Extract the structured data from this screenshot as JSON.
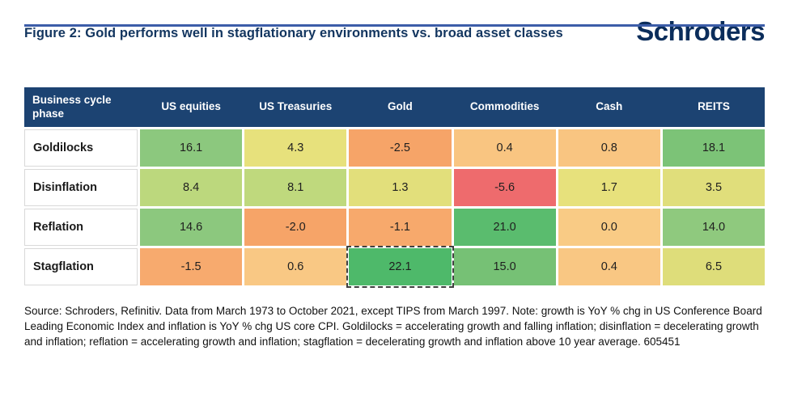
{
  "header": {
    "title": "Figure 2: Gold performs well in stagflationary environments vs. broad asset classes",
    "logo": "Schroders"
  },
  "colors": {
    "brand_navy": "#0b2d5b",
    "header_bar": "#1c4372",
    "top_rule_blue": "#3c5da8",
    "highlight_dash": "#404040"
  },
  "table": {
    "corner_header": "Business cycle phase",
    "column_keys": [
      "us-equities",
      "us-treasuries",
      "gold",
      "commodities",
      "cash",
      "reits"
    ]
  },
  "chart_data": {
    "type": "heatmap",
    "title": "Figure 2: Gold performs well in stagflationary environments vs. broad asset classes",
    "rows": [
      "Goldilocks",
      "Disinflation",
      "Reflation",
      "Stagflation"
    ],
    "columns": [
      "US equities",
      "US Treasuries",
      "Gold",
      "Commodities",
      "Cash",
      "REITS"
    ],
    "values": [
      [
        16.1,
        4.3,
        -2.5,
        0.4,
        0.8,
        18.1
      ],
      [
        8.4,
        8.1,
        1.3,
        -5.6,
        1.7,
        3.5
      ],
      [
        14.6,
        -2.0,
        -1.1,
        21.0,
        0.0,
        14.0
      ],
      [
        -1.5,
        0.6,
        22.1,
        15.0,
        0.4,
        6.5
      ]
    ],
    "cell_colors": [
      [
        "#8cc87e",
        "#e7e17c",
        "#f6a468",
        "#f9c581",
        "#f9c581",
        "#7cc377"
      ],
      [
        "#bcd87d",
        "#bfd97d",
        "#e2df7b",
        "#ee6b6d",
        "#e7e17c",
        "#e0de7b"
      ],
      [
        "#8cc87e",
        "#f6a468",
        "#f7a96c",
        "#5abc6e",
        "#f9cb85",
        "#8fc97e"
      ],
      [
        "#f7aa6e",
        "#f9c884",
        "#4eb96a",
        "#76c175",
        "#f9c783",
        "#dedd7a"
      ]
    ],
    "highlighted_cell": {
      "row": "Stagflation",
      "column": "Gold",
      "row_index": 3,
      "col_index": 2,
      "value": 22.1
    },
    "color_scale": {
      "low": "#ee6b6d",
      "mid": "#e7e17c",
      "high": "#4eb96a"
    },
    "legend": "none",
    "grid": "white gaps between cells"
  },
  "footnote": "Source: Schroders, Refinitiv. Data from March 1973 to October 2021, except TIPS from March 1997. Note: growth is YoY % chg in US Conference Board Leading Economic Index and inflation is YoY % chg US core CPI. Goldilocks = accelerating growth and falling inflation; disinflation = decelerating growth and inflation; reflation = accelerating growth and inflation; stagflation = decelerating growth and inflation above 10 year average. 605451"
}
